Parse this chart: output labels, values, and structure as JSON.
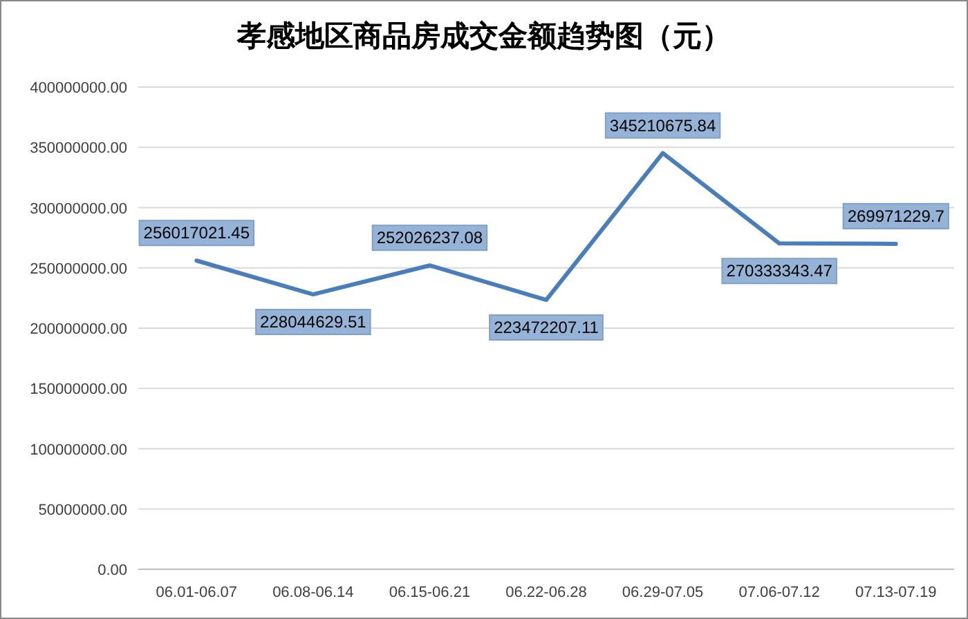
{
  "chart_data": {
    "type": "line",
    "title": "孝感地区商品房成交金额趋势图（元）",
    "categories": [
      "06.01-06.07",
      "06.08-06.14",
      "06.15-06.21",
      "06.22-06.28",
      "06.29-07.05",
      "07.06-07.12",
      "07.13-07.19"
    ],
    "values": [
      256017021.45,
      228044629.51,
      252026237.08,
      223472207.11,
      345210675.84,
      270333343.47,
      269971229.7
    ],
    "color": "#4a7ebb",
    "ylim": [
      0,
      400000000
    ],
    "yticks": [
      {
        "value": 0,
        "label": "0.00"
      },
      {
        "value": 50000000,
        "label": "50000000.00"
      },
      {
        "value": 100000000,
        "label": "100000000.00"
      },
      {
        "value": 150000000,
        "label": "150000000.00"
      },
      {
        "value": 200000000,
        "label": "200000000.00"
      },
      {
        "value": 250000000,
        "label": "250000000.00"
      },
      {
        "value": 300000000,
        "label": "300000000.00"
      },
      {
        "value": 350000000,
        "label": "350000000.00"
      },
      {
        "value": 400000000,
        "label": "400000000.00"
      }
    ],
    "grid": "y",
    "data_labels": true
  }
}
